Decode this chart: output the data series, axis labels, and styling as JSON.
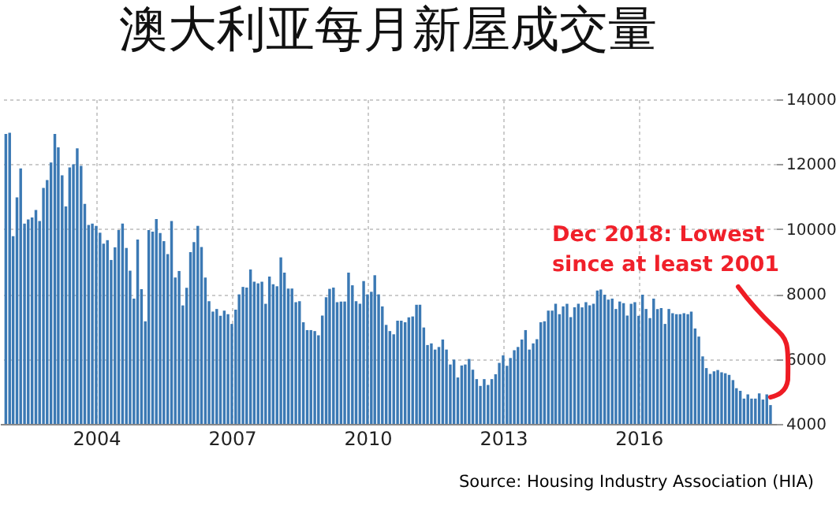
{
  "chart_data": {
    "type": "bar",
    "title": "澳大利亚每月新屋成交量",
    "x": [
      "2002-01",
      "2002-02",
      "2002-03",
      "2002-04",
      "2002-05",
      "2002-06",
      "2002-07",
      "2002-08",
      "2002-09",
      "2002-10",
      "2002-11",
      "2002-12",
      "2003-01",
      "2003-02",
      "2003-03",
      "2003-04",
      "2003-05",
      "2003-06",
      "2003-07",
      "2003-08",
      "2003-09",
      "2003-10",
      "2003-11",
      "2003-12",
      "2004-01",
      "2004-02",
      "2004-03",
      "2004-04",
      "2004-05",
      "2004-06",
      "2004-07",
      "2004-08",
      "2004-09",
      "2004-10",
      "2004-11",
      "2004-12",
      "2005-01",
      "2005-02",
      "2005-03",
      "2005-04",
      "2005-05",
      "2005-06",
      "2005-07",
      "2005-08",
      "2005-09",
      "2005-10",
      "2005-11",
      "2005-12",
      "2006-01",
      "2006-02",
      "2006-03",
      "2006-04",
      "2006-05",
      "2006-06",
      "2006-07",
      "2006-08",
      "2006-09",
      "2006-10",
      "2006-11",
      "2006-12",
      "2007-01",
      "2007-02",
      "2007-03",
      "2007-04",
      "2007-05",
      "2007-06",
      "2007-07",
      "2007-08",
      "2007-09",
      "2007-10",
      "2007-11",
      "2007-12",
      "2008-01",
      "2008-02",
      "2008-03",
      "2008-04",
      "2008-05",
      "2008-06",
      "2008-07",
      "2008-08",
      "2008-09",
      "2008-10",
      "2008-11",
      "2008-12",
      "2009-01",
      "2009-02",
      "2009-03",
      "2009-04",
      "2009-05",
      "2009-06",
      "2009-07",
      "2009-08",
      "2009-09",
      "2009-10",
      "2009-11",
      "2009-12",
      "2010-01",
      "2010-02",
      "2010-03",
      "2010-04",
      "2010-05",
      "2010-06",
      "2010-07",
      "2010-08",
      "2010-09",
      "2010-10",
      "2010-11",
      "2010-12",
      "2011-01",
      "2011-02",
      "2011-03",
      "2011-04",
      "2011-05",
      "2011-06",
      "2011-07",
      "2011-08",
      "2011-09",
      "2011-10",
      "2011-11",
      "2011-12",
      "2012-01",
      "2012-02",
      "2012-03",
      "2012-04",
      "2012-05",
      "2012-06",
      "2012-07",
      "2012-08",
      "2012-09",
      "2012-10",
      "2012-11",
      "2012-12",
      "2013-01",
      "2013-02",
      "2013-03",
      "2013-04",
      "2013-05",
      "2013-06",
      "2013-07",
      "2013-08",
      "2013-09",
      "2013-10",
      "2013-11",
      "2013-12",
      "2014-01",
      "2014-02",
      "2014-03",
      "2014-04",
      "2014-05",
      "2014-06",
      "2014-07",
      "2014-08",
      "2014-09",
      "2014-10",
      "2014-11",
      "2014-12",
      "2015-01",
      "2015-02",
      "2015-03",
      "2015-04",
      "2015-05",
      "2015-06",
      "2015-07",
      "2015-08",
      "2015-09",
      "2015-10",
      "2015-11",
      "2015-12",
      "2016-01",
      "2016-02",
      "2016-03",
      "2016-04",
      "2016-05",
      "2016-06",
      "2016-07",
      "2016-08",
      "2016-09",
      "2016-10",
      "2016-11",
      "2016-12",
      "2017-01",
      "2017-02",
      "2017-03",
      "2017-04",
      "2017-05",
      "2017-06",
      "2017-07",
      "2017-08",
      "2017-09",
      "2017-10",
      "2017-11",
      "2017-12",
      "2018-01",
      "2018-02",
      "2018-03",
      "2018-04",
      "2018-05",
      "2018-06",
      "2018-07",
      "2018-08",
      "2018-09",
      "2018-10",
      "2018-11",
      "2018-12"
    ],
    "values": [
      12930,
      12970,
      9780,
      10980,
      11870,
      10170,
      10300,
      10360,
      10590,
      10250,
      11270,
      11510,
      12050,
      12930,
      12520,
      11660,
      10700,
      11900,
      12000,
      12490,
      11950,
      10780,
      10130,
      10170,
      10100,
      9890,
      9550,
      9660,
      9050,
      9440,
      9970,
      10170,
      9420,
      8720,
      7860,
      9680,
      8150,
      7160,
      9970,
      9920,
      10310,
      9880,
      9630,
      9230,
      10250,
      8510,
      8710,
      7650,
      8190,
      9290,
      9600,
      10100,
      9450,
      8510,
      7780,
      7460,
      7540,
      7330,
      7490,
      7380,
      7080,
      7520,
      7990,
      8220,
      8200,
      8760,
      8380,
      8330,
      8380,
      7700,
      8540,
      8300,
      8240,
      9130,
      8660,
      8170,
      8170,
      7750,
      7780,
      7130,
      6890,
      6890,
      6860,
      6730,
      7340,
      7900,
      8160,
      8200,
      7750,
      7770,
      7770,
      8660,
      8270,
      7780,
      7700,
      8400,
      7990,
      8070,
      8580,
      7990,
      7620,
      7050,
      6860,
      6760,
      7180,
      7180,
      7130,
      7280,
      7310,
      7670,
      7670,
      6970,
      6430,
      6480,
      6290,
      6370,
      6600,
      6290,
      5830,
      5980,
      5430,
      5800,
      5830,
      6000,
      5670,
      5380,
      5170,
      5380,
      5200,
      5380,
      5530,
      5880,
      6110,
      5790,
      6030,
      6270,
      6370,
      6600,
      6890,
      6290,
      6480,
      6610,
      7130,
      7160,
      7490,
      7490,
      7700,
      7380,
      7620,
      7700,
      7290,
      7590,
      7700,
      7590,
      7750,
      7650,
      7700,
      8110,
      8140,
      7980,
      7830,
      7860,
      7540,
      7770,
      7720,
      7340,
      7700,
      7750,
      7330,
      7980,
      7540,
      7260,
      7860,
      7540,
      7570,
      7080,
      7540,
      7410,
      7380,
      7380,
      7410,
      7380,
      7460,
      6940,
      6690,
      6080,
      5720,
      5540,
      5620,
      5660,
      5590,
      5560,
      5510,
      5350,
      5100,
      5020,
      4780,
      4910,
      4780,
      4780,
      4940,
      4750,
      4910,
      4580
    ],
    "color": "#3b79b4",
    "xlim": [
      "2001-11-15",
      "2019-01-15"
    ],
    "xticks": [
      "2004",
      "2007",
      "2010",
      "2013",
      "2016"
    ],
    "ylim": [
      4000,
      14000
    ],
    "yticks": [
      4000,
      6000,
      8000,
      10000,
      12000,
      14000
    ],
    "grid": true,
    "annotations": [
      "Source: Housing Industry Association (HIA)",
      {
        "text": "Dec 2018: Lowest since at least 2001",
        "x": "2018-12",
        "y": 4580
      }
    ]
  }
}
